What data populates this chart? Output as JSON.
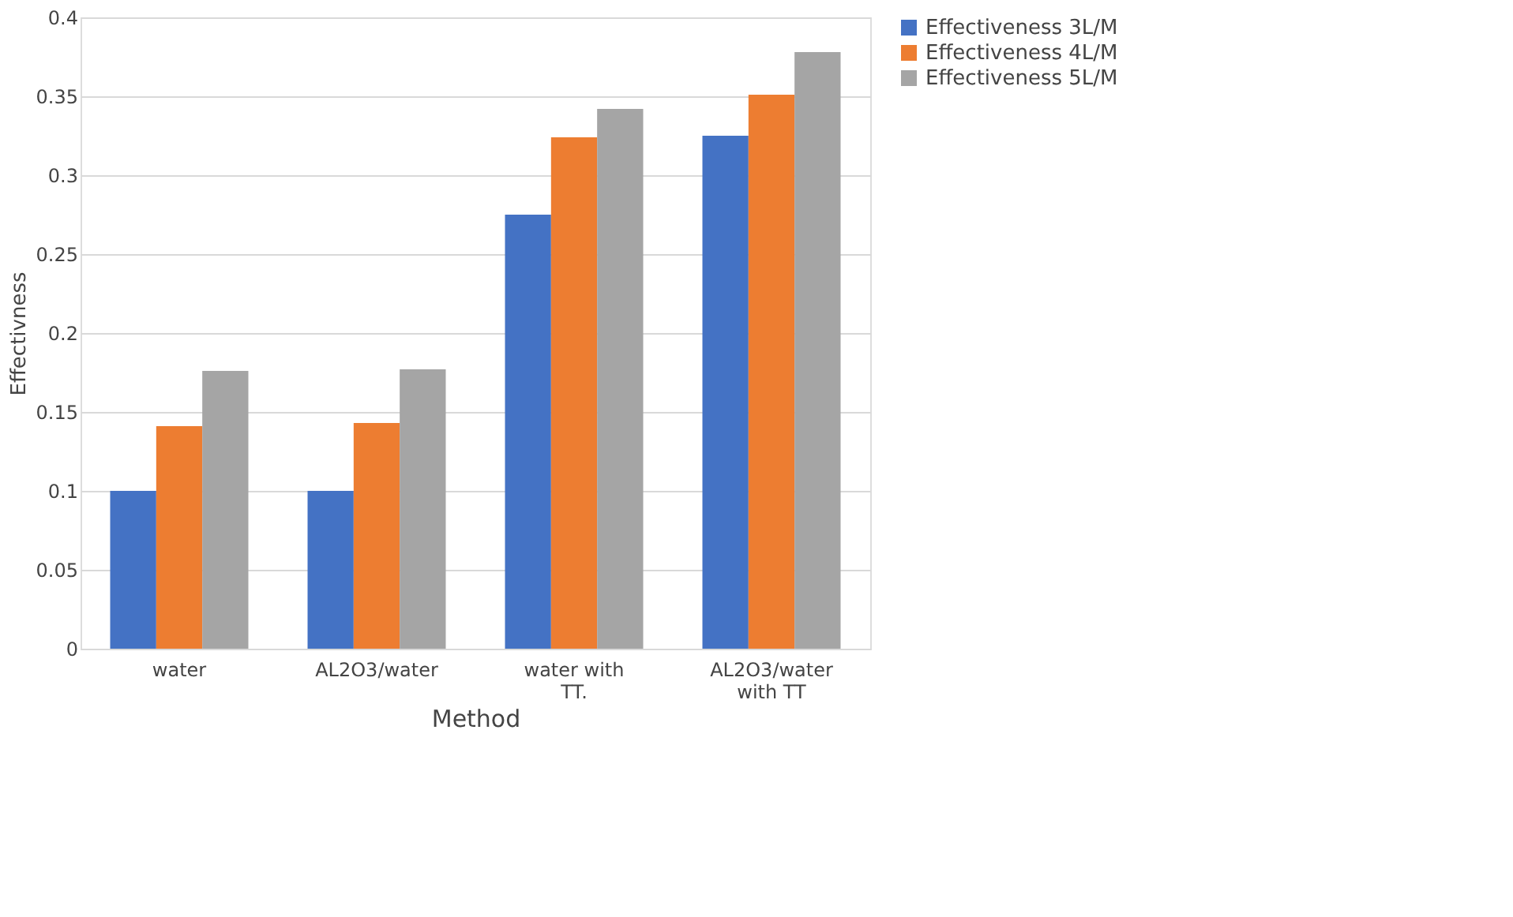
{
  "chart_data": {
    "type": "bar",
    "xlabel": "Method",
    "ylabel": "Effectivness",
    "categories": [
      "water",
      "AL2O3/water",
      "water with TT.",
      "AL2O3/water with TT"
    ],
    "series": [
      {
        "name": "Effectiveness 3L/M",
        "color": "#4472c4",
        "values": [
          0.1,
          0.1,
          0.275,
          0.325
        ]
      },
      {
        "name": "Effectiveness 4L/M",
        "color": "#ed7d31",
        "values": [
          0.141,
          0.143,
          0.324,
          0.351
        ]
      },
      {
        "name": "Effectiveness 5L/M",
        "color": "#a5a5a5",
        "values": [
          0.176,
          0.177,
          0.342,
          0.378
        ]
      }
    ],
    "ylim": [
      0,
      0.4
    ],
    "yticks": [
      0,
      0.05,
      0.1,
      0.15,
      0.2,
      0.25,
      0.3,
      0.35,
      0.4
    ],
    "grid": "y",
    "legend": "right"
  }
}
